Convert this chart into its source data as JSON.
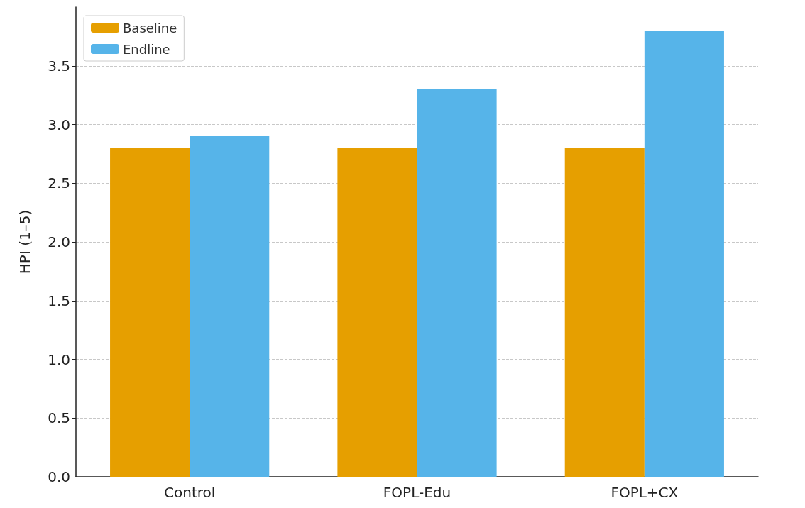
{
  "chart_data": {
    "type": "bar",
    "ylabel": "HPI (1–5)",
    "categories": [
      "Control",
      "FOPL-Edu",
      "FOPL+CX"
    ],
    "series": [
      {
        "name": "Baseline",
        "color": "#e69f00",
        "values": [
          2.8,
          2.8,
          2.8
        ]
      },
      {
        "name": "Endline",
        "color": "#56b4e9",
        "values": [
          2.9,
          3.3,
          3.8
        ]
      }
    ],
    "ylim": [
      0,
      4.0
    ],
    "yticks": [
      {
        "value": 0,
        "label": "0.0"
      },
      0.5,
      {
        "value": 1,
        "label": "1.0"
      },
      1.5,
      {
        "value": 2,
        "label": "2.0"
      },
      2.5,
      {
        "value": 3,
        "label": "3.0"
      },
      3.5
    ],
    "grid": true,
    "legend": "top left"
  }
}
